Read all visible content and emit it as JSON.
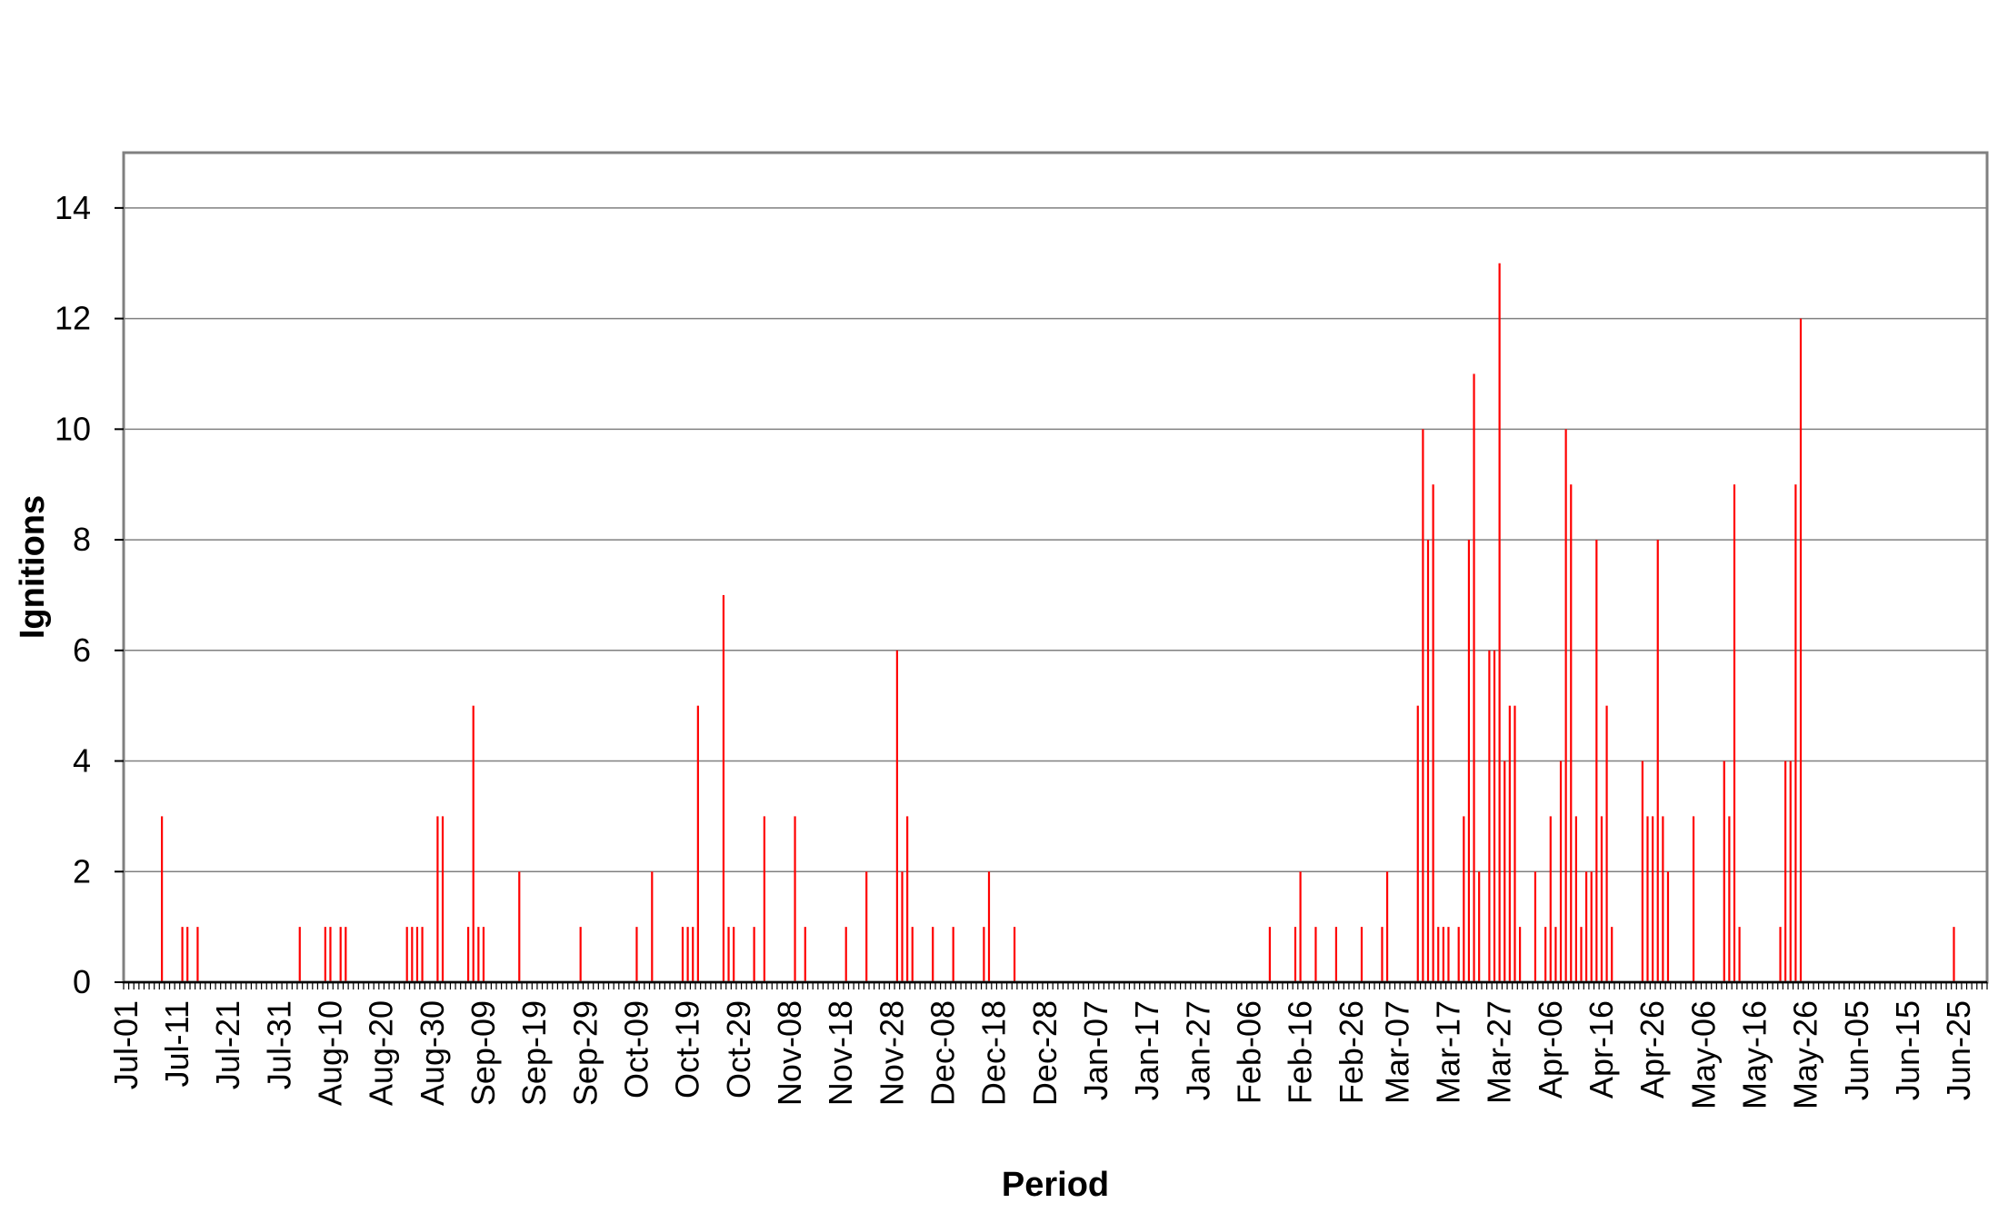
{
  "chart_data": {
    "type": "bar",
    "title": "",
    "xlabel": "Period",
    "ylabel": "Ignitions",
    "ylim": [
      0,
      15
    ],
    "yticks": [
      0,
      2,
      4,
      6,
      8,
      10,
      12,
      14
    ],
    "grid": true,
    "legend": "none",
    "bar_color": "#ff0000",
    "x_start": "Jul-01",
    "x_end": "Jun-30",
    "xtick_labels": [
      "Jul-01",
      "Jul-11",
      "Jul-21",
      "Jul-31",
      "Aug-10",
      "Aug-20",
      "Aug-30",
      "Sep-09",
      "Sep-19",
      "Sep-29",
      "Oct-09",
      "Oct-19",
      "Oct-29",
      "Nov-08",
      "Nov-18",
      "Nov-28",
      "Dec-08",
      "Dec-18",
      "Dec-28",
      "Jan-07",
      "Jan-17",
      "Jan-27",
      "Feb-06",
      "Feb-16",
      "Feb-26",
      "Mar-07",
      "Mar-17",
      "Mar-27",
      "Apr-06",
      "Apr-16",
      "Apr-26",
      "May-06",
      "May-16",
      "May-26",
      "Jun-05",
      "Jun-15",
      "Jun-25"
    ],
    "series": [
      {
        "points": [
          {
            "x": "Jul-08",
            "y": 3
          },
          {
            "x": "Jul-12",
            "y": 1
          },
          {
            "x": "Jul-13",
            "y": 1
          },
          {
            "x": "Jul-15",
            "y": 1
          },
          {
            "x": "Aug-04",
            "y": 1
          },
          {
            "x": "Aug-09",
            "y": 1
          },
          {
            "x": "Aug-10",
            "y": 1
          },
          {
            "x": "Aug-12",
            "y": 1
          },
          {
            "x": "Aug-13",
            "y": 1
          },
          {
            "x": "Aug-25",
            "y": 1
          },
          {
            "x": "Aug-26",
            "y": 1
          },
          {
            "x": "Aug-27",
            "y": 1
          },
          {
            "x": "Aug-28",
            "y": 1
          },
          {
            "x": "Aug-31",
            "y": 3
          },
          {
            "x": "Sep-01",
            "y": 3
          },
          {
            "x": "Sep-06",
            "y": 1
          },
          {
            "x": "Sep-07",
            "y": 5
          },
          {
            "x": "Sep-08",
            "y": 1
          },
          {
            "x": "Sep-09",
            "y": 1
          },
          {
            "x": "Sep-16",
            "y": 2
          },
          {
            "x": "Sep-28",
            "y": 1
          },
          {
            "x": "Oct-09",
            "y": 1
          },
          {
            "x": "Oct-12",
            "y": 2
          },
          {
            "x": "Oct-18",
            "y": 1
          },
          {
            "x": "Oct-19",
            "y": 1
          },
          {
            "x": "Oct-20",
            "y": 1
          },
          {
            "x": "Oct-21",
            "y": 5
          },
          {
            "x": "Oct-26",
            "y": 7
          },
          {
            "x": "Oct-27",
            "y": 1
          },
          {
            "x": "Oct-28",
            "y": 1
          },
          {
            "x": "Nov-01",
            "y": 1
          },
          {
            "x": "Nov-03",
            "y": 3
          },
          {
            "x": "Nov-09",
            "y": 3
          },
          {
            "x": "Nov-11",
            "y": 1
          },
          {
            "x": "Nov-19",
            "y": 1
          },
          {
            "x": "Nov-23",
            "y": 2
          },
          {
            "x": "Nov-29",
            "y": 6
          },
          {
            "x": "Nov-30",
            "y": 2
          },
          {
            "x": "Dec-01",
            "y": 3
          },
          {
            "x": "Dec-02",
            "y": 1
          },
          {
            "x": "Dec-06",
            "y": 1
          },
          {
            "x": "Dec-10",
            "y": 1
          },
          {
            "x": "Dec-16",
            "y": 1
          },
          {
            "x": "Dec-17",
            "y": 2
          },
          {
            "x": "Dec-22",
            "y": 1
          },
          {
            "x": "Feb-10",
            "y": 1
          },
          {
            "x": "Feb-15",
            "y": 1
          },
          {
            "x": "Feb-16",
            "y": 2
          },
          {
            "x": "Feb-19",
            "y": 1
          },
          {
            "x": "Feb-23",
            "y": 1
          },
          {
            "x": "Feb-28",
            "y": 1
          },
          {
            "x": "Mar-04",
            "y": 1
          },
          {
            "x": "Mar-05",
            "y": 2
          },
          {
            "x": "Mar-11",
            "y": 5
          },
          {
            "x": "Mar-12",
            "y": 10
          },
          {
            "x": "Mar-13",
            "y": 8
          },
          {
            "x": "Mar-14",
            "y": 9
          },
          {
            "x": "Mar-15",
            "y": 1
          },
          {
            "x": "Mar-16",
            "y": 1
          },
          {
            "x": "Mar-17",
            "y": 1
          },
          {
            "x": "Mar-19",
            "y": 1
          },
          {
            "x": "Mar-20",
            "y": 3
          },
          {
            "x": "Mar-21",
            "y": 8
          },
          {
            "x": "Mar-22",
            "y": 11
          },
          {
            "x": "Mar-23",
            "y": 2
          },
          {
            "x": "Mar-25",
            "y": 6
          },
          {
            "x": "Mar-26",
            "y": 6
          },
          {
            "x": "Mar-27",
            "y": 13
          },
          {
            "x": "Mar-28",
            "y": 4
          },
          {
            "x": "Mar-29",
            "y": 5
          },
          {
            "x": "Mar-30",
            "y": 5
          },
          {
            "x": "Mar-31",
            "y": 1
          },
          {
            "x": "Apr-03",
            "y": 2
          },
          {
            "x": "Apr-05",
            "y": 1
          },
          {
            "x": "Apr-06",
            "y": 3
          },
          {
            "x": "Apr-07",
            "y": 1
          },
          {
            "x": "Apr-08",
            "y": 4
          },
          {
            "x": "Apr-09",
            "y": 10
          },
          {
            "x": "Apr-10",
            "y": 9
          },
          {
            "x": "Apr-11",
            "y": 3
          },
          {
            "x": "Apr-12",
            "y": 1
          },
          {
            "x": "Apr-13",
            "y": 2
          },
          {
            "x": "Apr-14",
            "y": 2
          },
          {
            "x": "Apr-15",
            "y": 8
          },
          {
            "x": "Apr-16",
            "y": 3
          },
          {
            "x": "Apr-17",
            "y": 5
          },
          {
            "x": "Apr-18",
            "y": 1
          },
          {
            "x": "Apr-24",
            "y": 4
          },
          {
            "x": "Apr-25",
            "y": 3
          },
          {
            "x": "Apr-26",
            "y": 3
          },
          {
            "x": "Apr-27",
            "y": 8
          },
          {
            "x": "Apr-28",
            "y": 3
          },
          {
            "x": "Apr-29",
            "y": 2
          },
          {
            "x": "May-04",
            "y": 3
          },
          {
            "x": "May-10",
            "y": 4
          },
          {
            "x": "May-11",
            "y": 3
          },
          {
            "x": "May-12",
            "y": 9
          },
          {
            "x": "May-13",
            "y": 1
          },
          {
            "x": "May-21",
            "y": 1
          },
          {
            "x": "May-22",
            "y": 4
          },
          {
            "x": "May-23",
            "y": 4
          },
          {
            "x": "May-24",
            "y": 9
          },
          {
            "x": "May-25",
            "y": 12
          },
          {
            "x": "Jun-24",
            "y": 1
          }
        ]
      }
    ]
  }
}
